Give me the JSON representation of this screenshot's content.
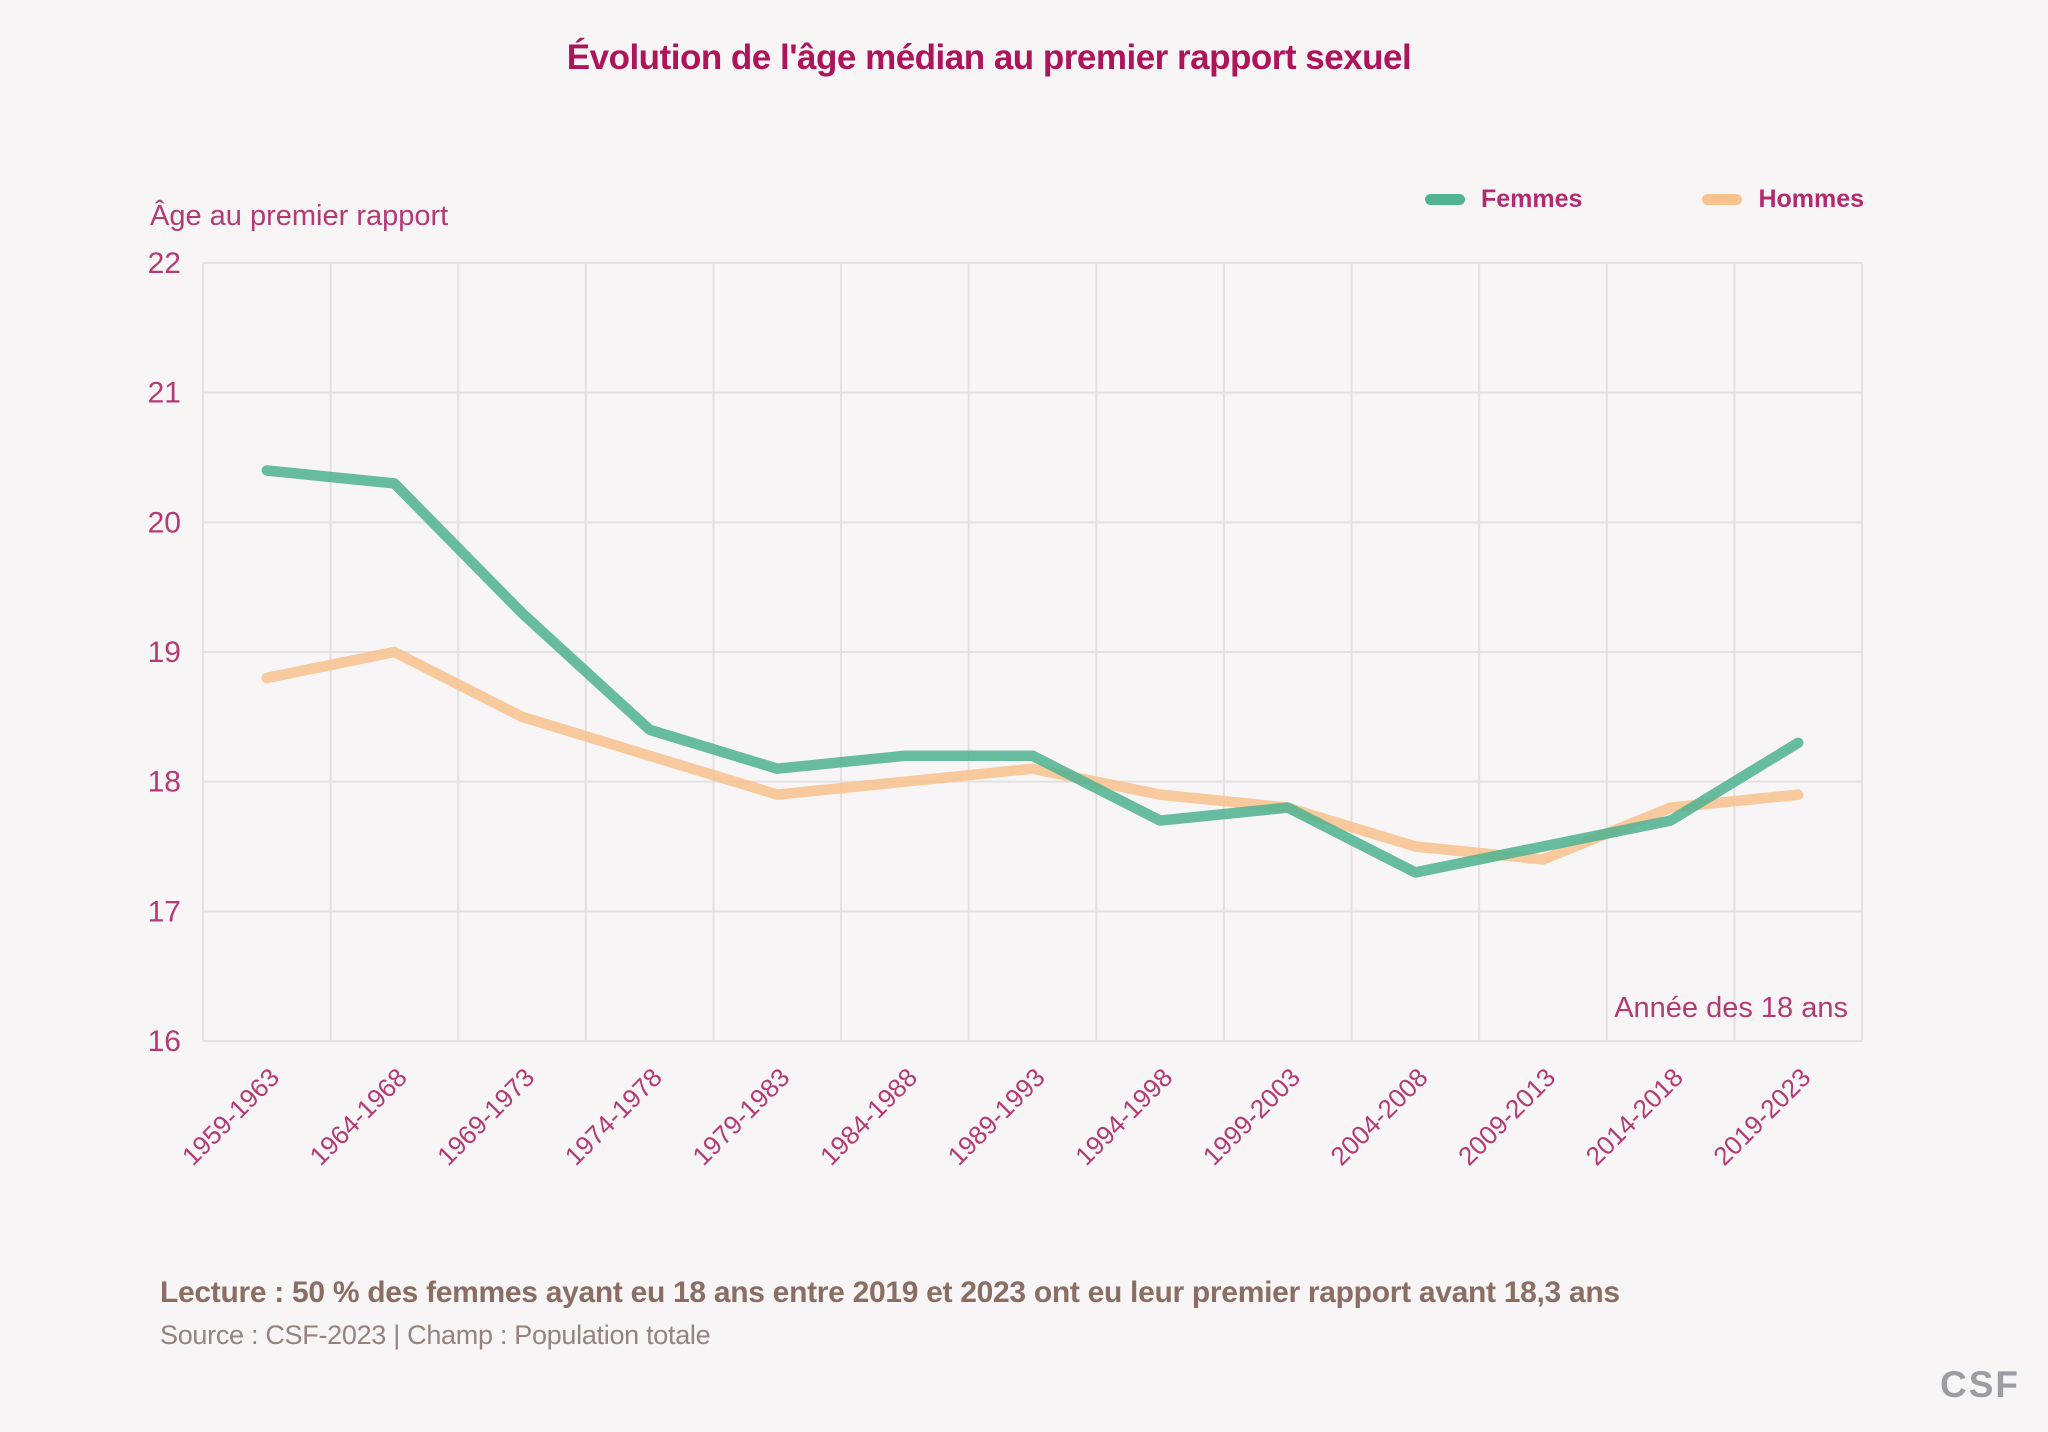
{
  "page": {
    "background": "#f8f5f7",
    "logo": "CSF"
  },
  "chart_data": {
    "type": "line",
    "title": "Évolution de l'âge médian au premier rapport sexuel",
    "y_axis_title": "Âge au premier rapport",
    "x_axis_annotation": "Année des 18 ans",
    "categories": [
      "1959-1963",
      "1964-1968",
      "1969-1973",
      "1974-1978",
      "1979-1983",
      "1984-1988",
      "1989-1993",
      "1994-1998",
      "1999-2003",
      "2004-2008",
      "2009-2013",
      "2014-2018",
      "2019-2023"
    ],
    "series": [
      {
        "name": "Femmes",
        "color": "#52b392",
        "values": [
          20.4,
          20.3,
          19.3,
          18.4,
          18.1,
          18.2,
          18.2,
          17.7,
          17.8,
          17.3,
          17.5,
          17.7,
          18.3
        ]
      },
      {
        "name": "Hommes",
        "color": "#f6c38f",
        "values": [
          18.8,
          19.0,
          18.5,
          18.2,
          17.9,
          18.0,
          18.1,
          17.9,
          17.8,
          17.5,
          17.4,
          17.8,
          17.9
        ]
      }
    ],
    "ylim": [
      16,
      22
    ],
    "y_ticks": [
      16,
      17,
      18,
      19,
      20,
      21,
      22
    ],
    "grid": true,
    "legend_position": "top-right"
  },
  "footer": {
    "lecture": "Lecture : 50 % des femmes ayant eu 18 ans entre 2019 et 2023 ont eu leur premier rapport avant 18,3 ans",
    "source": "Source : CSF-2023  |  Champ : Population totale"
  },
  "colors": {
    "title": "#ae1459",
    "axis_text": "#b43a74",
    "legend_text": "#b32a6d",
    "grid": "#e3e0e3",
    "femmes": "#52b392",
    "hommes": "#f6c38f",
    "lecture_text": "#8a6e63",
    "source_text": "#95837d",
    "logo_gray": "#9c9da2"
  }
}
